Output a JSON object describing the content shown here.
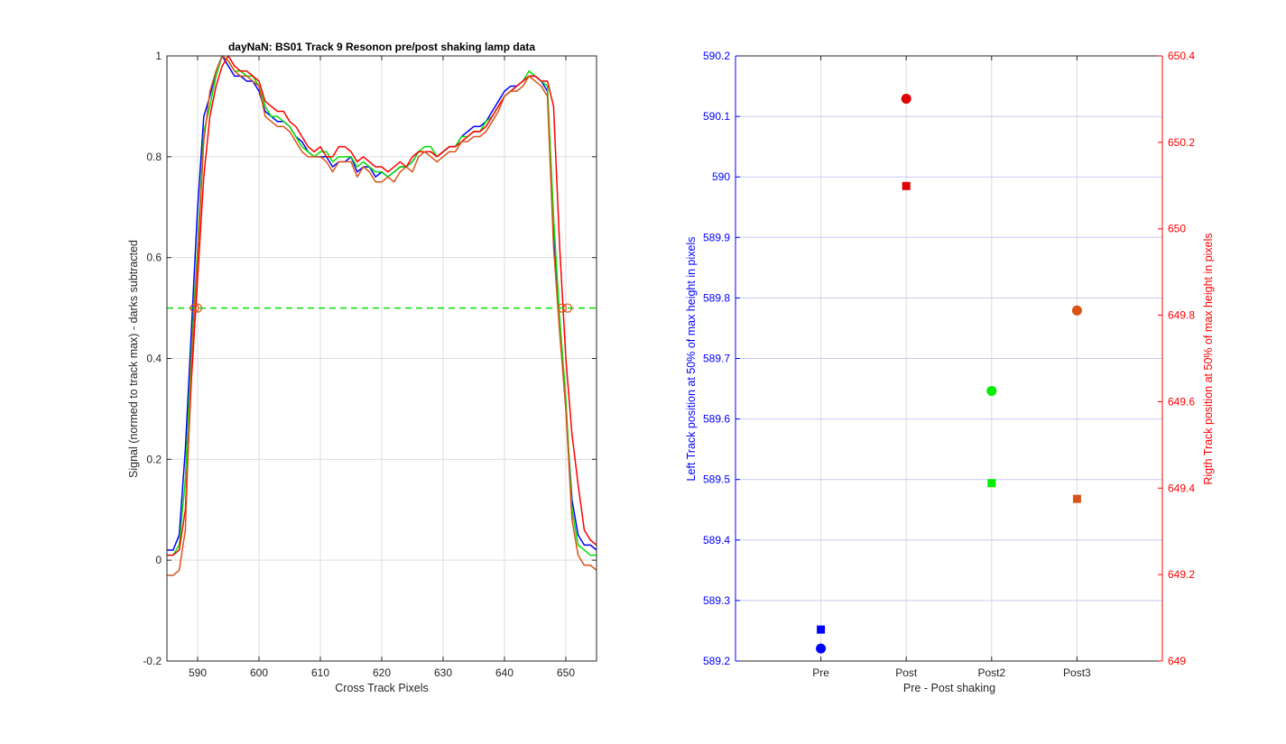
{
  "left_chart": {
    "title": "dayNaN: BS01  Track 9 Resonon pre/post shaking lamp data",
    "xlabel": "Cross Track Pixels",
    "ylabel": "Signal (normed to track max) - darks subtracted",
    "xlim": [
      585,
      655
    ],
    "ylim": [
      -0.2,
      1
    ],
    "xticks": [
      590,
      600,
      610,
      620,
      630,
      640,
      650
    ],
    "yticks": [
      -0.2,
      0,
      0.2,
      0.4,
      0.6,
      0.8,
      1
    ],
    "ytick_labels": [
      "-0.2",
      "0",
      "0.2",
      "0.4",
      "0.6",
      "0.8",
      "1"
    ],
    "grid": true,
    "reference_line": {
      "y": 0.5,
      "color": "#00e000",
      "style": "dashed"
    }
  },
  "right_chart": {
    "xlabel": "Pre - Post shaking",
    "ylabel_left": "Left Track position at 50% of max height in pixels",
    "ylabel_right": "Rigth Track position at 50% of max height in pixels",
    "categories": [
      "Pre",
      "Post",
      "Post2",
      "Post3"
    ],
    "ylim_left": [
      589.2,
      590.2
    ],
    "ylim_right": [
      649,
      650.4
    ],
    "yticks_left": [
      "589.2",
      "589.3",
      "589.4",
      "589.5",
      "589.6",
      "589.7",
      "589.8",
      "589.9",
      "590",
      "590.1",
      "590.2"
    ],
    "yticks_right": [
      "649",
      "649.2",
      "649.4",
      "649.6",
      "649.8",
      "650",
      "650.2",
      "650.4"
    ],
    "left_axis_color": "#0000ff",
    "right_axis_color": "#ff0000",
    "grid": true
  },
  "chart_data": [
    {
      "type": "line",
      "title": "dayNaN: BS01  Track 9 Resonon pre/post shaking lamp data",
      "xlabel": "Cross Track Pixels",
      "ylabel": "Signal (normed to track max) - darks subtracted",
      "xlim": [
        585,
        655
      ],
      "ylim": [
        -0.2,
        1
      ],
      "x": [
        585,
        586,
        587,
        588,
        589,
        590,
        591,
        592,
        593,
        594,
        595,
        596,
        597,
        598,
        599,
        600,
        601,
        602,
        603,
        604,
        605,
        606,
        607,
        608,
        609,
        610,
        611,
        612,
        613,
        614,
        615,
        616,
        617,
        618,
        619,
        620,
        621,
        622,
        623,
        624,
        625,
        626,
        627,
        628,
        629,
        630,
        631,
        632,
        633,
        634,
        635,
        636,
        637,
        638,
        639,
        640,
        641,
        642,
        643,
        644,
        645,
        646,
        647,
        648,
        649,
        650,
        651,
        652,
        653,
        654,
        655
      ],
      "series": [
        {
          "color": "#0000ff",
          "values": [
            0.02,
            0.02,
            0.05,
            0.22,
            0.46,
            0.7,
            0.88,
            0.92,
            0.97,
            1.0,
            0.98,
            0.96,
            0.96,
            0.95,
            0.95,
            0.93,
            0.89,
            0.88,
            0.87,
            0.87,
            0.86,
            0.84,
            0.83,
            0.81,
            0.8,
            0.8,
            0.8,
            0.78,
            0.79,
            0.79,
            0.8,
            0.77,
            0.78,
            0.78,
            0.76,
            0.77,
            0.76,
            0.77,
            0.78,
            0.78,
            0.79,
            0.81,
            0.81,
            0.81,
            0.8,
            0.81,
            0.82,
            0.82,
            0.84,
            0.85,
            0.86,
            0.86,
            0.87,
            0.89,
            0.91,
            0.93,
            0.94,
            0.94,
            0.95,
            0.96,
            0.96,
            0.95,
            0.93,
            0.65,
            0.46,
            0.3,
            0.12,
            0.05,
            0.03,
            0.03,
            0.02
          ]
        },
        {
          "color": "#00e000",
          "values": [
            0.01,
            0.01,
            0.03,
            0.16,
            0.42,
            0.62,
            0.85,
            0.9,
            0.96,
            1.0,
            0.99,
            0.97,
            0.97,
            0.96,
            0.96,
            0.94,
            0.9,
            0.88,
            0.88,
            0.87,
            0.86,
            0.84,
            0.82,
            0.81,
            0.8,
            0.81,
            0.81,
            0.79,
            0.8,
            0.8,
            0.8,
            0.78,
            0.79,
            0.78,
            0.77,
            0.77,
            0.76,
            0.77,
            0.78,
            0.78,
            0.79,
            0.81,
            0.82,
            0.82,
            0.8,
            0.81,
            0.82,
            0.82,
            0.84,
            0.84,
            0.85,
            0.85,
            0.87,
            0.88,
            0.9,
            0.92,
            0.93,
            0.94,
            0.95,
            0.97,
            0.96,
            0.95,
            0.94,
            0.68,
            0.48,
            0.32,
            0.1,
            0.03,
            0.02,
            0.01,
            0.01
          ]
        },
        {
          "color": "#ff0000",
          "values": [
            0.01,
            0.01,
            0.02,
            0.1,
            0.36,
            0.56,
            0.76,
            0.88,
            0.94,
            0.98,
            1.0,
            0.98,
            0.97,
            0.97,
            0.96,
            0.95,
            0.91,
            0.9,
            0.89,
            0.89,
            0.87,
            0.86,
            0.84,
            0.82,
            0.81,
            0.82,
            0.8,
            0.8,
            0.82,
            0.82,
            0.81,
            0.79,
            0.8,
            0.79,
            0.78,
            0.78,
            0.77,
            0.78,
            0.79,
            0.78,
            0.8,
            0.81,
            0.81,
            0.81,
            0.8,
            0.81,
            0.82,
            0.82,
            0.83,
            0.84,
            0.85,
            0.85,
            0.86,
            0.88,
            0.9,
            0.92,
            0.93,
            0.94,
            0.95,
            0.96,
            0.96,
            0.95,
            0.95,
            0.9,
            0.62,
            0.4,
            0.25,
            0.15,
            0.06,
            0.04,
            0.03
          ]
        },
        {
          "color": "#d95319",
          "values": [
            -0.03,
            -0.03,
            -0.02,
            0.06,
            0.4,
            0.6,
            0.83,
            0.93,
            0.97,
            1.0,
            0.99,
            0.97,
            0.96,
            0.96,
            0.95,
            0.94,
            0.88,
            0.87,
            0.86,
            0.86,
            0.85,
            0.83,
            0.81,
            0.8,
            0.8,
            0.8,
            0.79,
            0.77,
            0.79,
            0.79,
            0.79,
            0.76,
            0.78,
            0.77,
            0.75,
            0.75,
            0.76,
            0.75,
            0.77,
            0.78,
            0.77,
            0.8,
            0.81,
            0.8,
            0.79,
            0.8,
            0.81,
            0.81,
            0.83,
            0.83,
            0.84,
            0.84,
            0.85,
            0.87,
            0.89,
            0.92,
            0.93,
            0.93,
            0.94,
            0.96,
            0.95,
            0.94,
            0.92,
            0.62,
            0.45,
            0.3,
            0.08,
            0.01,
            -0.01,
            -0.01,
            -0.02
          ]
        }
      ],
      "crossings": [
        {
          "x": 589.5,
          "y": 0.5,
          "marker": "o",
          "color": "#d95319"
        },
        {
          "x": 590.0,
          "y": 0.5,
          "marker": "o",
          "color": "#d95319"
        },
        {
          "x": 649.4,
          "y": 0.5,
          "marker": "o",
          "color": "#d95319"
        },
        {
          "x": 650.3,
          "y": 0.5,
          "marker": "o",
          "color": "#d95319"
        }
      ]
    },
    {
      "type": "scatter",
      "xlabel": "Pre - Post shaking",
      "categories": [
        "Pre",
        "Post",
        "Post2",
        "Post3"
      ],
      "left_axis": {
        "label": "Left Track position at 50% of max height in pixels",
        "ylim": [
          589.2,
          590.2
        ],
        "points": [
          {
            "category": "Pre",
            "value": 589.252,
            "color": "#0000ff",
            "marker": "square"
          },
          {
            "category": "Post",
            "value": 589.985,
            "color": "#e00000",
            "marker": "square"
          },
          {
            "category": "Post2",
            "value": 589.494,
            "color": "#00ee00",
            "marker": "square"
          },
          {
            "category": "Post3",
            "value": 589.468,
            "color": "#d95319",
            "marker": "square"
          }
        ]
      },
      "right_axis": {
        "label": "Rigth Track position at 50% of max height in pixels",
        "ylim": [
          649,
          650.4
        ],
        "points": [
          {
            "category": "Pre",
            "value": 649.029,
            "color": "#0000ff",
            "marker": "circle"
          },
          {
            "category": "Post",
            "value": 650.301,
            "color": "#e00000",
            "marker": "circle"
          },
          {
            "category": "Post2",
            "value": 649.625,
            "color": "#00ee00",
            "marker": "circle"
          },
          {
            "category": "Post3",
            "value": 649.811,
            "color": "#d95319",
            "marker": "circle"
          }
        ]
      }
    }
  ]
}
